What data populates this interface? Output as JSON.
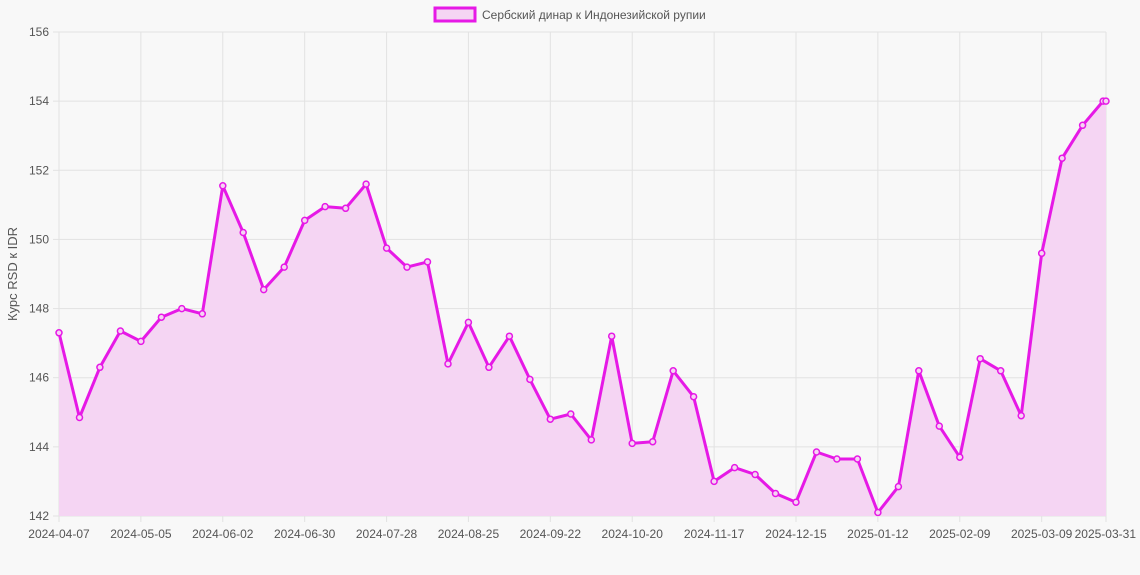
{
  "colors": {
    "line": "#e619e6",
    "fill": "#f5d5f3",
    "grid": "#e2e2e2",
    "axis_text": "#555555",
    "background": "#f8f8f8"
  },
  "chart_data": {
    "type": "line",
    "ylabel": "Курс RSD к IDR",
    "ylim": [
      142,
      156
    ],
    "yticks": [
      142,
      144,
      146,
      148,
      150,
      152,
      154,
      156
    ],
    "xlim": [
      "2024-04-07",
      "2025-03-31"
    ],
    "xticks": [
      "2024-04-07",
      "2024-05-05",
      "2024-06-02",
      "2024-06-30",
      "2024-07-28",
      "2024-08-25",
      "2024-09-22",
      "2024-10-20",
      "2024-11-17",
      "2024-12-15",
      "2025-01-12",
      "2025-02-09",
      "2025-03-09",
      "2025-03-31"
    ],
    "grid": true,
    "legend_position": "top-center",
    "fill_under": true,
    "series": [
      {
        "name": "Сербский динар к Индонезийской рупии",
        "x": [
          "2024-04-07",
          "2024-04-14",
          "2024-04-21",
          "2024-04-28",
          "2024-05-05",
          "2024-05-12",
          "2024-05-19",
          "2024-05-26",
          "2024-06-02",
          "2024-06-09",
          "2024-06-16",
          "2024-06-23",
          "2024-06-30",
          "2024-07-07",
          "2024-07-14",
          "2024-07-21",
          "2024-07-28",
          "2024-08-04",
          "2024-08-11",
          "2024-08-18",
          "2024-08-25",
          "2024-09-01",
          "2024-09-08",
          "2024-09-15",
          "2024-09-22",
          "2024-09-29",
          "2024-10-06",
          "2024-10-13",
          "2024-10-20",
          "2024-10-27",
          "2024-11-03",
          "2024-11-10",
          "2024-11-17",
          "2024-11-24",
          "2024-12-01",
          "2024-12-08",
          "2024-12-15",
          "2024-12-22",
          "2024-12-29",
          "2025-01-05",
          "2025-01-12",
          "2025-01-19",
          "2025-01-26",
          "2025-02-02",
          "2025-02-09",
          "2025-02-16",
          "2025-02-23",
          "2025-03-02",
          "2025-03-09",
          "2025-03-16",
          "2025-03-23",
          "2025-03-30",
          "2025-03-31"
        ],
        "values": [
          147.3,
          144.85,
          146.3,
          147.35,
          147.05,
          147.75,
          148.0,
          147.85,
          151.55,
          150.2,
          148.55,
          149.2,
          150.55,
          150.95,
          150.9,
          151.6,
          149.75,
          149.2,
          149.35,
          146.4,
          147.6,
          146.3,
          147.2,
          145.95,
          144.8,
          144.95,
          144.2,
          147.2,
          144.1,
          144.15,
          146.2,
          145.45,
          143.0,
          143.4,
          143.2,
          142.65,
          142.4,
          143.85,
          143.65,
          143.65,
          142.1,
          142.85,
          146.2,
          144.6,
          143.7,
          146.55,
          146.2,
          144.9,
          149.6,
          152.35,
          153.3,
          154.0,
          154.0
        ]
      }
    ]
  }
}
